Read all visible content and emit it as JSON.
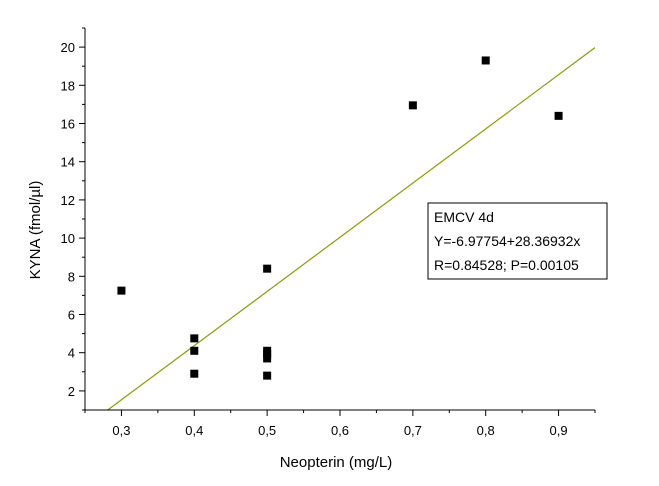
{
  "chart_data": {
    "type": "scatter",
    "xlabel": "Neopterin (mg/L)",
    "ylabel": "KYNA (fmol/µl)",
    "xlim": [
      0.25,
      0.95
    ],
    "ylim": [
      1,
      21
    ],
    "x_ticks": [
      {
        "value": 0.3,
        "label": "0,3"
      },
      {
        "value": 0.4,
        "label": "0,4"
      },
      {
        "value": 0.5,
        "label": "0,5"
      },
      {
        "value": 0.6,
        "label": "0,6"
      },
      {
        "value": 0.7,
        "label": "0,7"
      },
      {
        "value": 0.8,
        "label": "0,8"
      },
      {
        "value": 0.9,
        "label": "0,9"
      }
    ],
    "y_ticks": [
      {
        "value": 2,
        "label": "2"
      },
      {
        "value": 4,
        "label": "4"
      },
      {
        "value": 6,
        "label": "6"
      },
      {
        "value": 8,
        "label": "8"
      },
      {
        "value": 10,
        "label": "10"
      },
      {
        "value": 12,
        "label": "12"
      },
      {
        "value": 14,
        "label": "14"
      },
      {
        "value": 16,
        "label": "16"
      },
      {
        "value": 18,
        "label": "18"
      },
      {
        "value": 20,
        "label": "20"
      }
    ],
    "points": [
      {
        "x": 0.3,
        "y": 7.25
      },
      {
        "x": 0.4,
        "y": 4.75
      },
      {
        "x": 0.4,
        "y": 4.1
      },
      {
        "x": 0.4,
        "y": 2.9
      },
      {
        "x": 0.5,
        "y": 8.4
      },
      {
        "x": 0.5,
        "y": 4.1
      },
      {
        "x": 0.5,
        "y": 3.95
      },
      {
        "x": 0.5,
        "y": 3.7
      },
      {
        "x": 0.5,
        "y": 2.8
      },
      {
        "x": 0.7,
        "y": 16.95
      },
      {
        "x": 0.8,
        "y": 19.3
      },
      {
        "x": 0.9,
        "y": 16.4
      }
    ],
    "fit_line": {
      "intercept": -6.97754,
      "slope": 28.36932,
      "color": "#8a9a10"
    },
    "legend": {
      "position": "right",
      "lines": [
        "EMCV 4d",
        "Y=-6.97754+28.36932x",
        "R=0.84528; P=0.00105"
      ]
    },
    "grid": false,
    "marker_color": "#000000"
  }
}
